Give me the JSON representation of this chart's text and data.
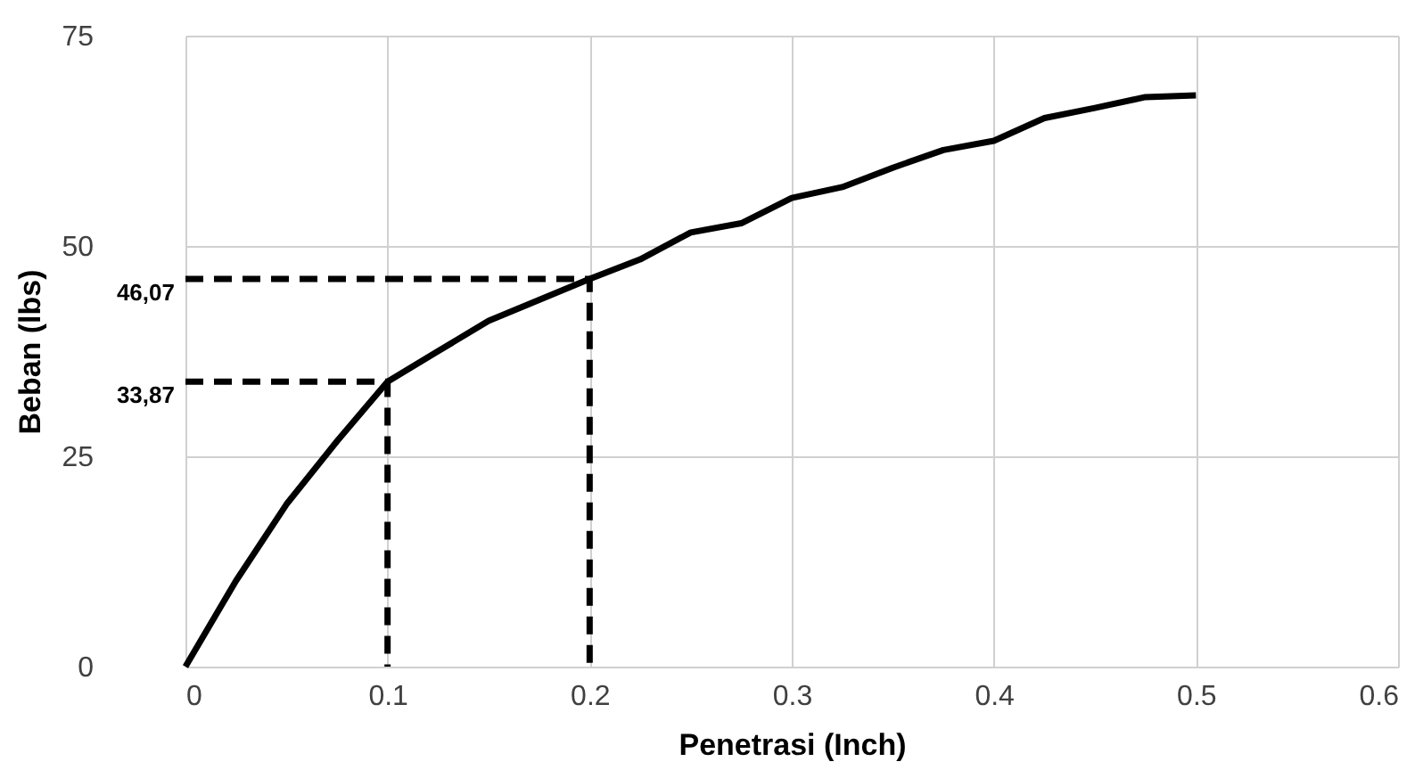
{
  "chart_data": {
    "type": "line",
    "xlabel": "Penetrasi (Inch)",
    "ylabel": "Beban (lbs)",
    "xlim": [
      0,
      0.6
    ],
    "xticks": [
      0,
      0.1,
      0.2,
      0.3,
      0.4,
      0.5,
      0.6
    ],
    "ylim": [
      0,
      75
    ],
    "yticks": [
      0,
      25,
      50,
      75
    ],
    "grid": true,
    "series": [
      {
        "color": "#000000",
        "line_style": "solid",
        "x": [
          0,
          0.025,
          0.05,
          0.075,
          0.1,
          0.125,
          0.15,
          0.175,
          0.2,
          0.225,
          0.25,
          0.275,
          0.3,
          0.325,
          0.35,
          0.375,
          0.4,
          0.425,
          0.45,
          0.475,
          0.5
        ],
        "values": [
          0,
          10.2,
          19.3,
          26.8,
          33.87,
          37.5,
          41.1,
          43.6,
          46.07,
          48.4,
          51.6,
          52.7,
          55.7,
          57.0,
          59.3,
          61.4,
          62.5,
          65.2,
          66.4,
          67.7,
          67.9
        ]
      },
      {
        "color": "#000000",
        "line_style": "dashed",
        "x": [
          0,
          0.1,
          0.1
        ],
        "values": [
          33.87,
          33.87,
          0
        ]
      },
      {
        "color": "#000000",
        "line_style": "dashed",
        "x": [
          0,
          0.2,
          0.2
        ],
        "values": [
          46.07,
          46.07,
          0
        ]
      }
    ],
    "annotations": [
      {
        "text": "33,87",
        "x": 0,
        "y": 33.87
      },
      {
        "text": "46,07",
        "x": 0,
        "y": 46.07
      }
    ]
  }
}
